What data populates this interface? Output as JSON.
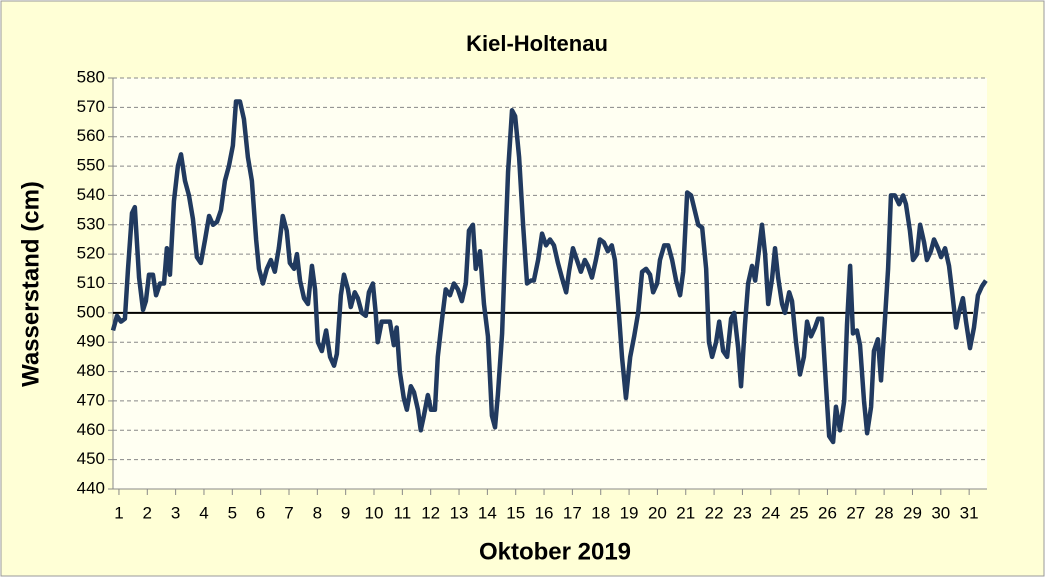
{
  "chart_data": {
    "type": "line",
    "title": "Kiel-Holtenau",
    "xlabel": "Oktober 2019",
    "ylabel": "Wasserstand (cm)",
    "x": [
      0.79,
      0.93,
      1.07,
      1.21,
      1.32,
      1.46,
      1.56,
      1.71,
      1.85,
      1.95,
      2.06,
      2.2,
      2.31,
      2.45,
      2.59,
      2.69,
      2.8,
      2.94,
      3.08,
      3.19,
      3.33,
      3.47,
      3.61,
      3.75,
      3.89,
      4.04,
      4.18,
      4.32,
      4.46,
      4.6,
      4.74,
      4.88,
      5.02,
      5.13,
      5.27,
      5.41,
      5.55,
      5.69,
      5.84,
      5.94,
      6.08,
      6.22,
      6.36,
      6.5,
      6.64,
      6.78,
      6.92,
      7.03,
      7.18,
      7.28,
      7.39,
      7.53,
      7.67,
      7.81,
      7.92,
      8.02,
      8.16,
      8.31,
      8.45,
      8.59,
      8.69,
      8.83,
      8.94,
      9.08,
      9.18,
      9.32,
      9.43,
      9.57,
      9.71,
      9.82,
      9.96,
      10.06,
      10.13,
      10.27,
      10.42,
      10.56,
      10.7,
      10.8,
      10.91,
      11.05,
      11.16,
      11.3,
      11.41,
      11.55,
      11.65,
      11.76,
      11.9,
      12.01,
      12.15,
      12.25,
      12.39,
      12.53,
      12.68,
      12.82,
      12.96,
      13.1,
      13.24,
      13.35,
      13.49,
      13.59,
      13.74,
      13.88,
      14.02,
      14.16,
      14.27,
      14.37,
      14.52,
      14.62,
      14.73,
      14.87,
      14.98,
      15.12,
      15.26,
      15.4,
      15.54,
      15.64,
      15.79,
      15.93,
      16.07,
      16.21,
      16.35,
      16.49,
      16.63,
      16.78,
      16.88,
      17.02,
      17.16,
      17.3,
      17.44,
      17.55,
      17.69,
      17.83,
      17.97,
      18.11,
      18.25,
      18.39,
      18.5,
      18.64,
      18.75,
      18.89,
      19.04,
      19.18,
      19.32,
      19.46,
      19.6,
      19.74,
      19.85,
      19.99,
      20.09,
      20.24,
      20.38,
      20.52,
      20.66,
      20.8,
      20.91,
      21.05,
      21.19,
      21.29,
      21.44,
      21.58,
      21.72,
      21.82,
      21.93,
      22.07,
      22.18,
      22.32,
      22.46,
      22.6,
      22.71,
      22.85,
      22.95,
      23.09,
      23.2,
      23.34,
      23.45,
      23.59,
      23.69,
      23.8,
      23.91,
      24.05,
      24.15,
      24.26,
      24.4,
      24.5,
      24.65,
      24.75,
      24.89,
      25.03,
      25.17,
      25.28,
      25.42,
      25.56,
      25.67,
      25.81,
      25.95,
      26.06,
      26.2,
      26.3,
      26.44,
      26.59,
      26.69,
      26.8,
      26.9,
      27.04,
      27.15,
      27.29,
      27.4,
      27.54,
      27.64,
      27.78,
      27.89,
      28.03,
      28.14,
      28.24,
      28.38,
      28.53,
      28.67,
      28.77,
      28.91,
      29.02,
      29.16,
      29.27,
      29.41,
      29.51,
      29.65,
      29.76,
      29.9,
      30.01,
      30.15,
      30.29,
      30.39,
      30.54,
      30.64,
      30.78,
      30.89,
      31.03,
      31.17,
      31.31,
      31.45,
      31.59
    ],
    "series": [
      {
        "name": "Wasserstand",
        "color": "#213a5f",
        "values": [
          494,
          499,
          497,
          498,
          515,
          534,
          536,
          512,
          501,
          504,
          513,
          513,
          506,
          510,
          510,
          522,
          513,
          538,
          550,
          554,
          545,
          540,
          532,
          519,
          517,
          525,
          533,
          530,
          531,
          535,
          545,
          550,
          557,
          572,
          572,
          566,
          553,
          545,
          525,
          515,
          510,
          515,
          518,
          514,
          522,
          533,
          528,
          517,
          515,
          520,
          511,
          505,
          503,
          516,
          508,
          490,
          487,
          494,
          485,
          482,
          486,
          506,
          513,
          508,
          502,
          507,
          505,
          500,
          499,
          507,
          510,
          500,
          490,
          497,
          497,
          497,
          489,
          495,
          480,
          471,
          467,
          475,
          473,
          467,
          460,
          465,
          472,
          467,
          467,
          485,
          497,
          508,
          506,
          510,
          508,
          504,
          510,
          528,
          530,
          515,
          521,
          503,
          492,
          465,
          461,
          472,
          493,
          520,
          548,
          569,
          567,
          553,
          530,
          510,
          511,
          511,
          518,
          527,
          523,
          525,
          523,
          517,
          512,
          507,
          514,
          522,
          518,
          514,
          518,
          516,
          512,
          518,
          525,
          524,
          521,
          523,
          518,
          500,
          485,
          471,
          485,
          492,
          500,
          514,
          515,
          513,
          507,
          510,
          518,
          523,
          523,
          518,
          511,
          506,
          514,
          541,
          540,
          536,
          530,
          529,
          515,
          490,
          485,
          490,
          497,
          487,
          485,
          498,
          500,
          488,
          475,
          496,
          510,
          516,
          511,
          522,
          530,
          520,
          503,
          512,
          522,
          512,
          503,
          500,
          507,
          504,
          490,
          479,
          485,
          497,
          492,
          495,
          498,
          498,
          475,
          458,
          456,
          468,
          460,
          470,
          496,
          516,
          493,
          494,
          489,
          470,
          459,
          468,
          487,
          491,
          477,
          498,
          515,
          540,
          540,
          537,
          540,
          537,
          528,
          518,
          520,
          530,
          524,
          518,
          521,
          525,
          522,
          519,
          522,
          516,
          508,
          495,
          500,
          505,
          497,
          488,
          495,
          506,
          509,
          511
        ]
      }
    ],
    "xlim": [
      0.79,
      31.63
    ],
    "xticks": [
      1,
      2,
      3,
      4,
      5,
      6,
      7,
      8,
      9,
      10,
      11,
      12,
      13,
      14,
      15,
      16,
      17,
      18,
      19,
      20,
      21,
      22,
      23,
      24,
      25,
      26,
      27,
      28,
      29,
      30,
      31
    ],
    "ylim": [
      440,
      580
    ],
    "yticks": [
      440,
      450,
      460,
      470,
      480,
      490,
      500,
      510,
      520,
      530,
      540,
      550,
      560,
      570,
      580
    ],
    "reference_line": 500,
    "grid": true
  }
}
